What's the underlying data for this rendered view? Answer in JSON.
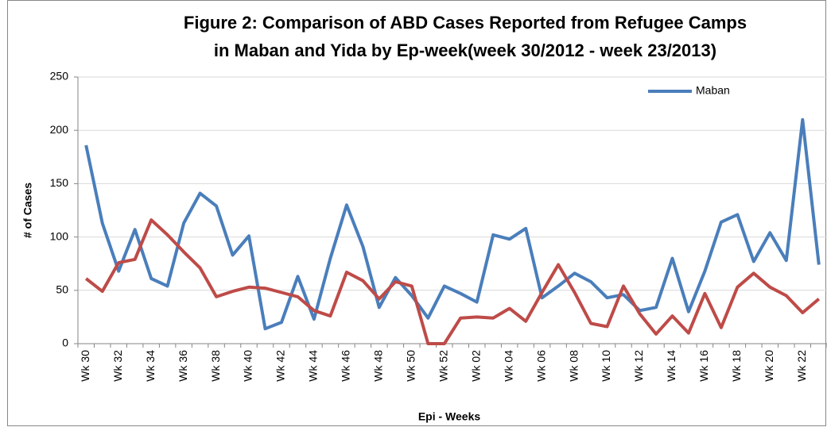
{
  "chart_data": {
    "type": "line",
    "title": [
      "Figure 2: Comparison of ABD Cases Reported from Refugee Camps",
      "in Maban and Yida by Ep-week(week 30/2012 - week 23/2013)"
    ],
    "x_label": "Epi - Weeks",
    "y_label": "# of Cases",
    "categories": [
      "Wk 30",
      null,
      "Wk 32",
      null,
      "Wk 34",
      null,
      "Wk 36",
      null,
      "Wk 38",
      null,
      "Wk 40",
      null,
      "Wk 42",
      null,
      "Wk 44",
      null,
      "Wk 46",
      null,
      "Wk 48",
      null,
      "Wk 50",
      null,
      "Wk 52",
      null,
      "Wk 02",
      null,
      "Wk 04",
      null,
      "Wk 06",
      null,
      "Wk 08",
      null,
      "Wk 10",
      null,
      "Wk 12",
      null,
      "Wk 14",
      null,
      "Wk 16",
      null,
      "Wk 18",
      null,
      "Wk 20",
      null,
      "Wk 22",
      null
    ],
    "series": [
      {
        "name": "Maban",
        "color": "#4a7ebb",
        "values": [
          186,
          113,
          68,
          107,
          61,
          54,
          113,
          141,
          129,
          83,
          101,
          14,
          20,
          63,
          23,
          80,
          130,
          91,
          34,
          62,
          45,
          24,
          54,
          47,
          39,
          102,
          98,
          108,
          43,
          54,
          66,
          58,
          43,
          46,
          31,
          34,
          80,
          30,
          68,
          114,
          121,
          77,
          104,
          78,
          210,
          74
        ]
      },
      {
        "color": "#be4b48",
        "values": [
          61,
          49,
          76,
          79,
          116,
          102,
          86,
          71,
          44,
          49,
          53,
          52,
          48,
          44,
          31,
          26,
          67,
          59,
          42,
          58,
          54,
          0,
          0,
          24,
          25,
          24,
          33,
          21,
          48,
          74,
          48,
          19,
          16,
          54,
          28,
          9,
          26,
          10,
          47,
          15,
          53,
          66,
          53,
          45,
          29,
          42
        ]
      }
    ],
    "ylim": [
      0,
      250
    ],
    "yticks": [
      0,
      50,
      100,
      150,
      200,
      250
    ],
    "grid": true,
    "legend": "top-right"
  }
}
